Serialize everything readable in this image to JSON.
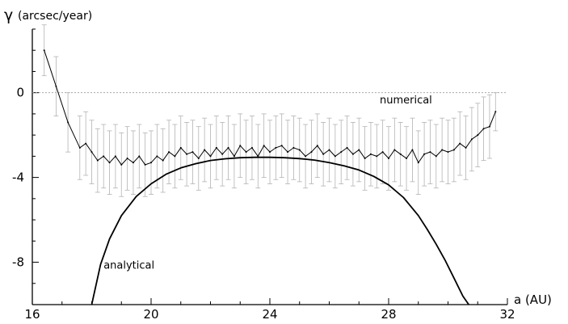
{
  "chart_data": {
    "type": "line",
    "ylabel_symbol": "γ",
    "ylabel_unit": "(arcsec/year)",
    "xlabel": "a (AU)",
    "xlim": [
      16,
      32
    ],
    "ylim": [
      -10,
      3
    ],
    "x_ticks": [
      16,
      20,
      24,
      28,
      32
    ],
    "y_ticks": [
      0,
      -4,
      -8
    ],
    "zero_line": 0,
    "series": [
      {
        "name": "numerical",
        "style": "errorbar-line",
        "color": "#000000",
        "errorbar_color": "#b3b3b3",
        "x": [
          16.4,
          16.8,
          17.2,
          17.6,
          17.8,
          18.0,
          18.2,
          18.4,
          18.6,
          18.8,
          19.0,
          19.2,
          19.4,
          19.6,
          19.8,
          20.0,
          20.2,
          20.4,
          20.6,
          20.8,
          21.0,
          21.2,
          21.4,
          21.6,
          21.8,
          22.0,
          22.2,
          22.4,
          22.6,
          22.8,
          23.0,
          23.2,
          23.4,
          23.6,
          23.8,
          24.0,
          24.2,
          24.4,
          24.6,
          24.8,
          25.0,
          25.2,
          25.4,
          25.6,
          25.8,
          26.0,
          26.2,
          26.4,
          26.6,
          26.8,
          27.0,
          27.2,
          27.4,
          27.6,
          27.8,
          28.0,
          28.2,
          28.4,
          28.6,
          28.8,
          29.0,
          29.2,
          29.4,
          29.6,
          29.8,
          30.0,
          30.2,
          30.4,
          30.6,
          30.8,
          31.0,
          31.2,
          31.4,
          31.6
        ],
        "y": [
          2.0,
          0.3,
          -1.4,
          -2.6,
          -2.4,
          -2.8,
          -3.2,
          -3.0,
          -3.3,
          -3.0,
          -3.4,
          -3.1,
          -3.3,
          -3.0,
          -3.4,
          -3.3,
          -3.0,
          -3.2,
          -2.8,
          -3.0,
          -2.6,
          -2.9,
          -2.8,
          -3.1,
          -2.7,
          -3.0,
          -2.6,
          -2.9,
          -2.6,
          -3.0,
          -2.5,
          -2.8,
          -2.6,
          -3.0,
          -2.5,
          -2.8,
          -2.6,
          -2.5,
          -2.8,
          -2.6,
          -2.7,
          -3.0,
          -2.8,
          -2.5,
          -2.9,
          -2.7,
          -3.0,
          -2.8,
          -2.6,
          -2.9,
          -2.7,
          -3.1,
          -2.9,
          -3.0,
          -2.8,
          -3.1,
          -2.7,
          -2.9,
          -3.1,
          -2.7,
          -3.3,
          -2.9,
          -2.8,
          -3.0,
          -2.7,
          -2.8,
          -2.7,
          -2.4,
          -2.6,
          -2.2,
          -2.0,
          -1.7,
          -1.6,
          -0.9
        ],
        "error": [
          1.2,
          1.4,
          1.4,
          1.5,
          1.5,
          1.5,
          1.5,
          1.5,
          1.5,
          1.5,
          1.5,
          1.5,
          1.5,
          1.5,
          1.5,
          1.5,
          1.5,
          1.5,
          1.5,
          1.5,
          1.5,
          1.5,
          1.5,
          1.5,
          1.5,
          1.5,
          1.5,
          1.5,
          1.5,
          1.5,
          1.5,
          1.5,
          1.5,
          1.5,
          1.5,
          1.5,
          1.5,
          1.5,
          1.5,
          1.5,
          1.5,
          1.5,
          1.5,
          1.5,
          1.5,
          1.5,
          1.5,
          1.5,
          1.5,
          1.5,
          1.5,
          1.5,
          1.5,
          1.5,
          1.5,
          1.5,
          1.5,
          1.5,
          1.5,
          1.5,
          1.5,
          1.5,
          1.5,
          1.5,
          1.5,
          1.5,
          1.5,
          1.5,
          1.5,
          1.5,
          1.5,
          1.5,
          1.5,
          0.9
        ]
      },
      {
        "name": "analytical",
        "style": "line",
        "color": "#000000",
        "x": [
          18.0,
          18.3,
          18.6,
          19.0,
          19.5,
          20.0,
          20.5,
          21.0,
          21.5,
          22.0,
          22.5,
          23.0,
          23.5,
          24.0,
          24.5,
          25.0,
          25.5,
          26.0,
          26.5,
          27.0,
          27.5,
          28.0,
          28.5,
          29.0,
          29.3,
          29.6,
          29.9,
          30.2,
          30.5,
          30.7
        ],
        "y": [
          -10.0,
          -8.1,
          -6.9,
          -5.8,
          -4.9,
          -4.3,
          -3.85,
          -3.55,
          -3.35,
          -3.2,
          -3.12,
          -3.07,
          -3.05,
          -3.05,
          -3.07,
          -3.11,
          -3.18,
          -3.3,
          -3.45,
          -3.65,
          -3.95,
          -4.35,
          -4.95,
          -5.8,
          -6.45,
          -7.15,
          -7.9,
          -8.75,
          -9.6,
          -10.0
        ]
      }
    ],
    "annotations": [
      {
        "text": "numerical",
        "x": 27.7,
        "y": -0.5,
        "color": "#b3b3b3"
      },
      {
        "text": "analytical",
        "x": 18.4,
        "y": -8.3,
        "color": "#000000"
      }
    ]
  }
}
